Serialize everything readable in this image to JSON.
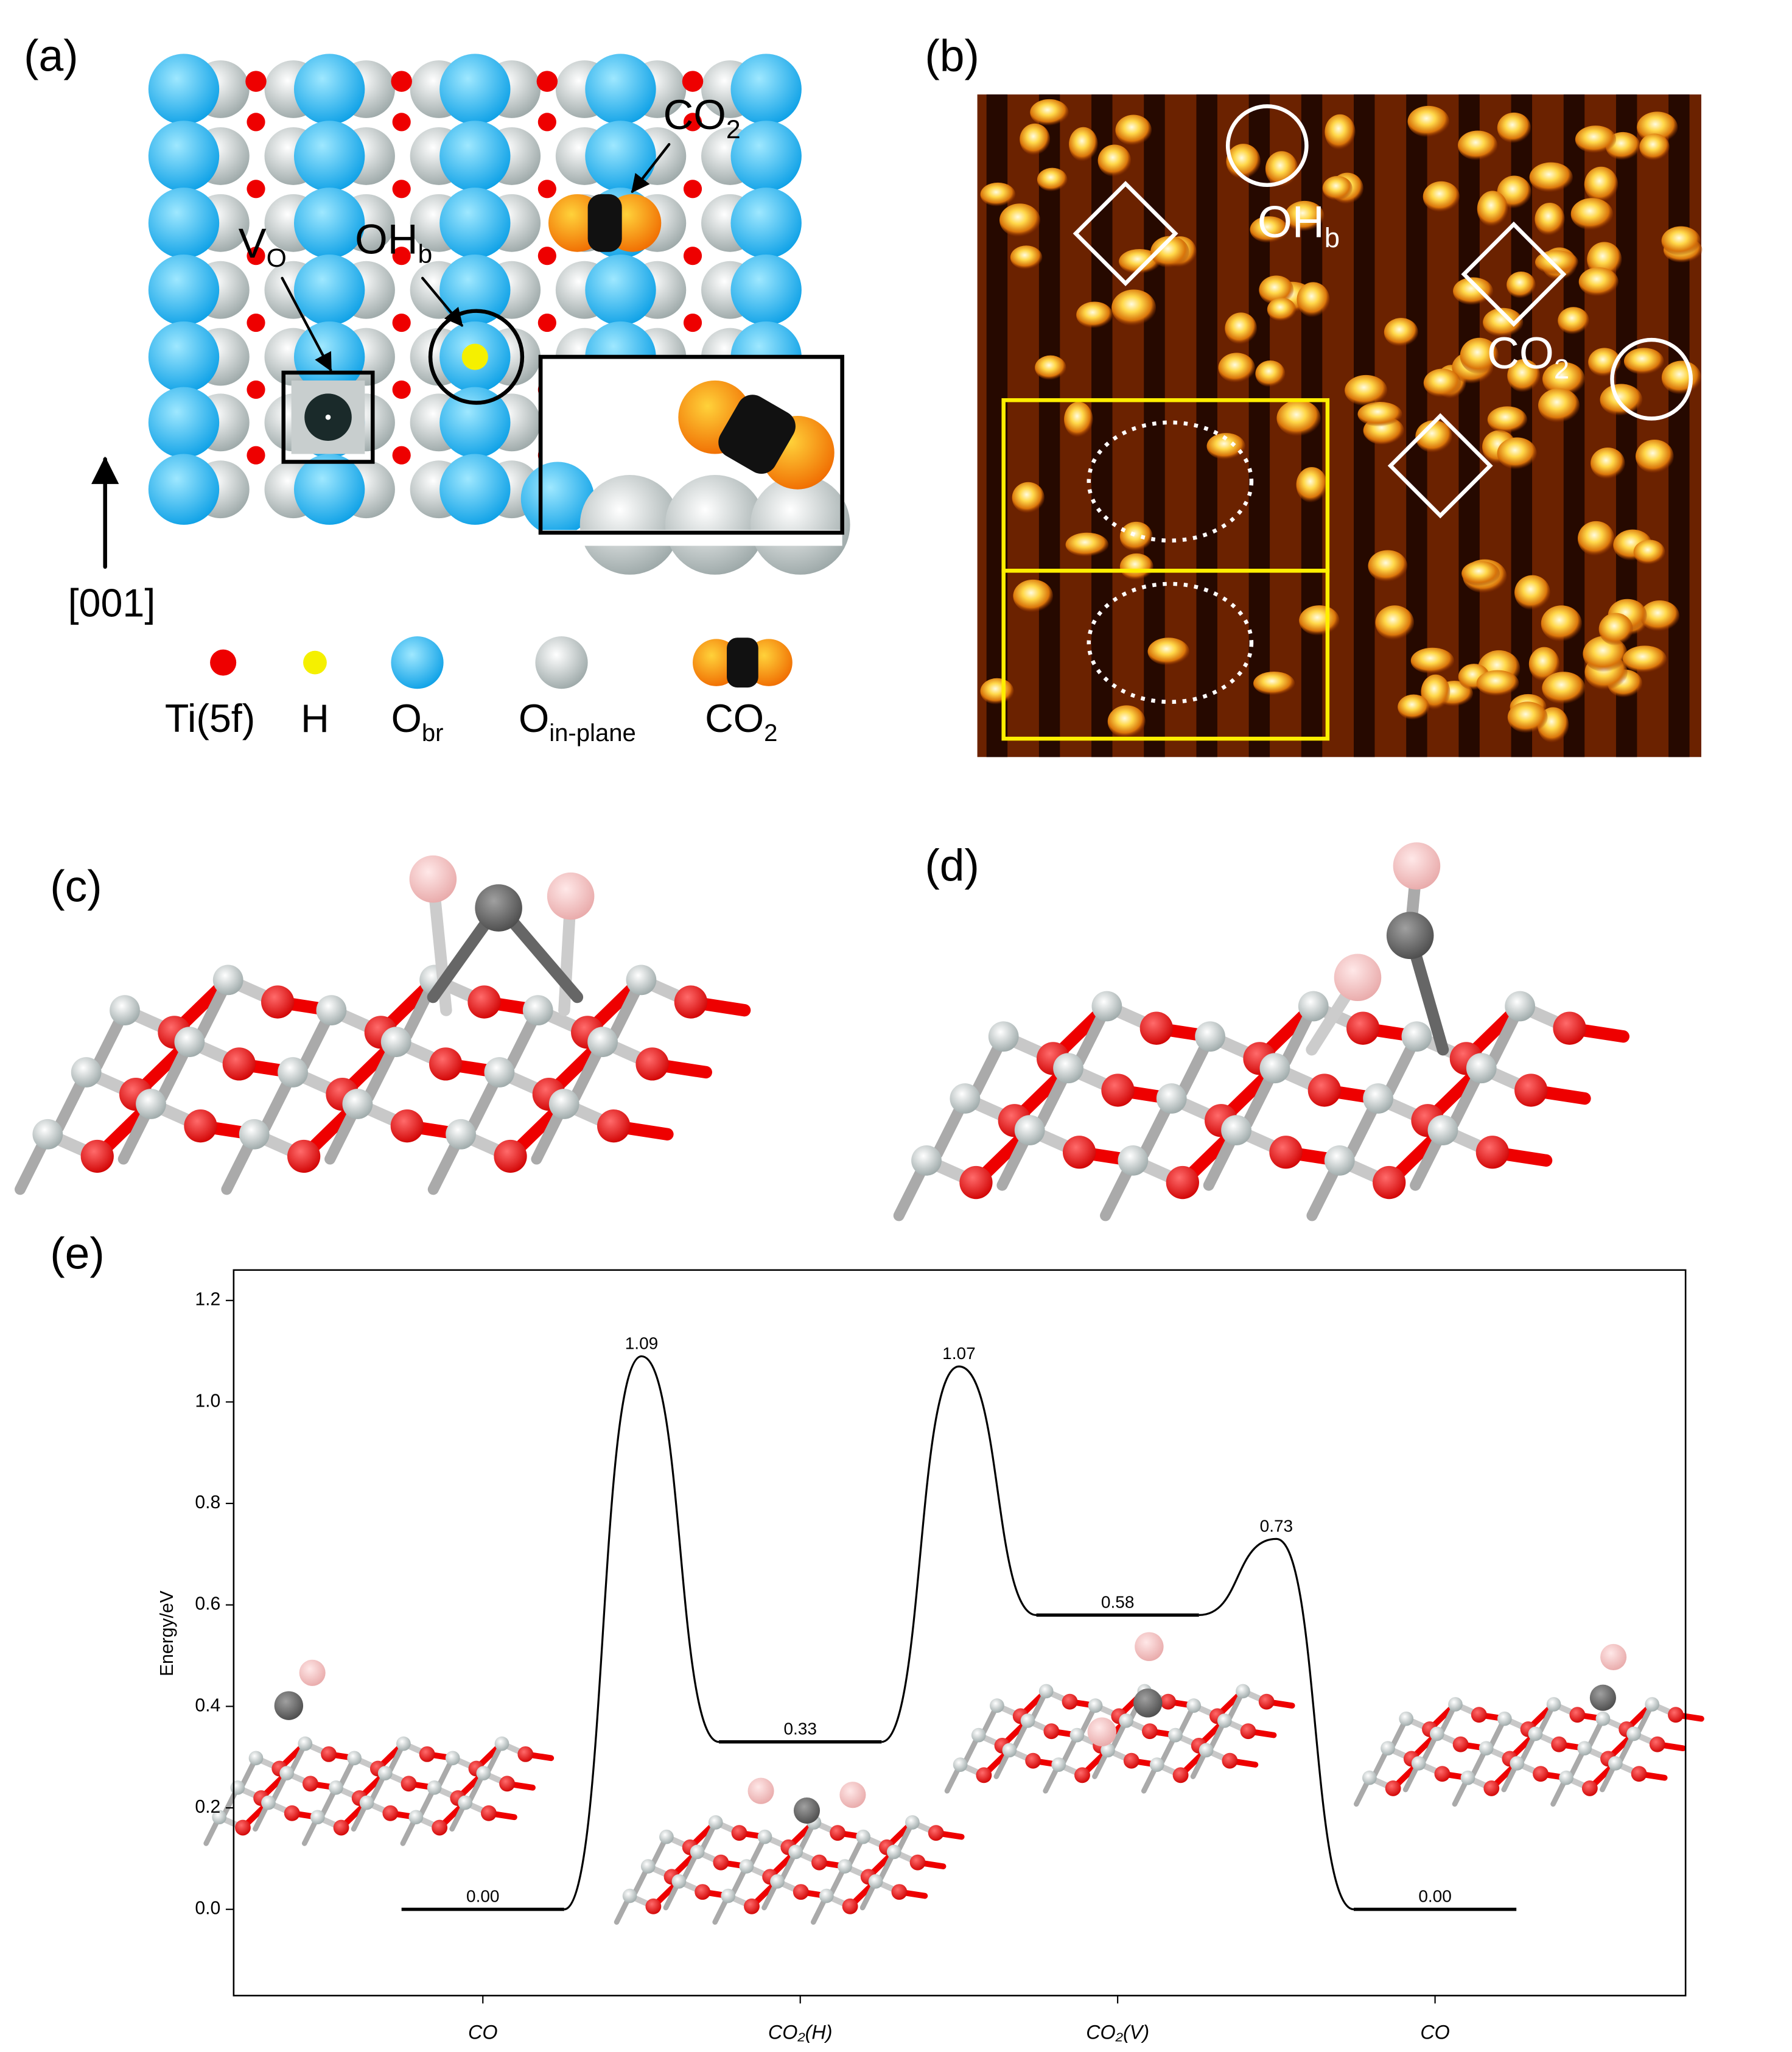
{
  "panels": {
    "a": {
      "label": "(a)",
      "co2": {
        "text": "CO",
        "sub": "2"
      },
      "vo": {
        "text": "V",
        "sub": "O"
      },
      "ohb": {
        "text": "OH",
        "sub": "b"
      },
      "direction": "[001]",
      "legend": [
        {
          "text": "Ti(5f)"
        },
        {
          "text": "H"
        },
        {
          "text": "O",
          "sub": "br"
        },
        {
          "text": "O",
          "sub": "in-plane"
        },
        {
          "text": "CO",
          "sub": "2"
        }
      ]
    },
    "b": {
      "label": "(b)",
      "ohb": {
        "text": "OH",
        "sub": "b"
      },
      "co2": {
        "text": "CO",
        "sub": "2"
      }
    },
    "c": {
      "label": "(c)"
    },
    "d": {
      "label": "(d)"
    },
    "e": {
      "label": "(e)"
    }
  },
  "chart_data": {
    "type": "energy-profile",
    "ylabel": "Energy/eV",
    "categories": [
      "CO",
      "CO₂(H)",
      "CO₂(V)",
      "CO"
    ],
    "levels": [
      0,
      0.33,
      0.58,
      0
    ],
    "level_labels": [
      "0.00",
      "0.33",
      "0.58",
      "0.00"
    ],
    "barriers": [
      1.09,
      1.07,
      0.73
    ],
    "barrier_labels": [
      "1.09",
      "1.07",
      "0.73"
    ],
    "color": "#000000",
    "ylim": [
      -0.17,
      1.26
    ],
    "yticks": [
      {
        "value": 0,
        "label": "0.0"
      },
      0.2,
      0.4,
      0.6,
      0.8,
      {
        "value": 1,
        "label": "1.0"
      },
      1.2
    ]
  }
}
